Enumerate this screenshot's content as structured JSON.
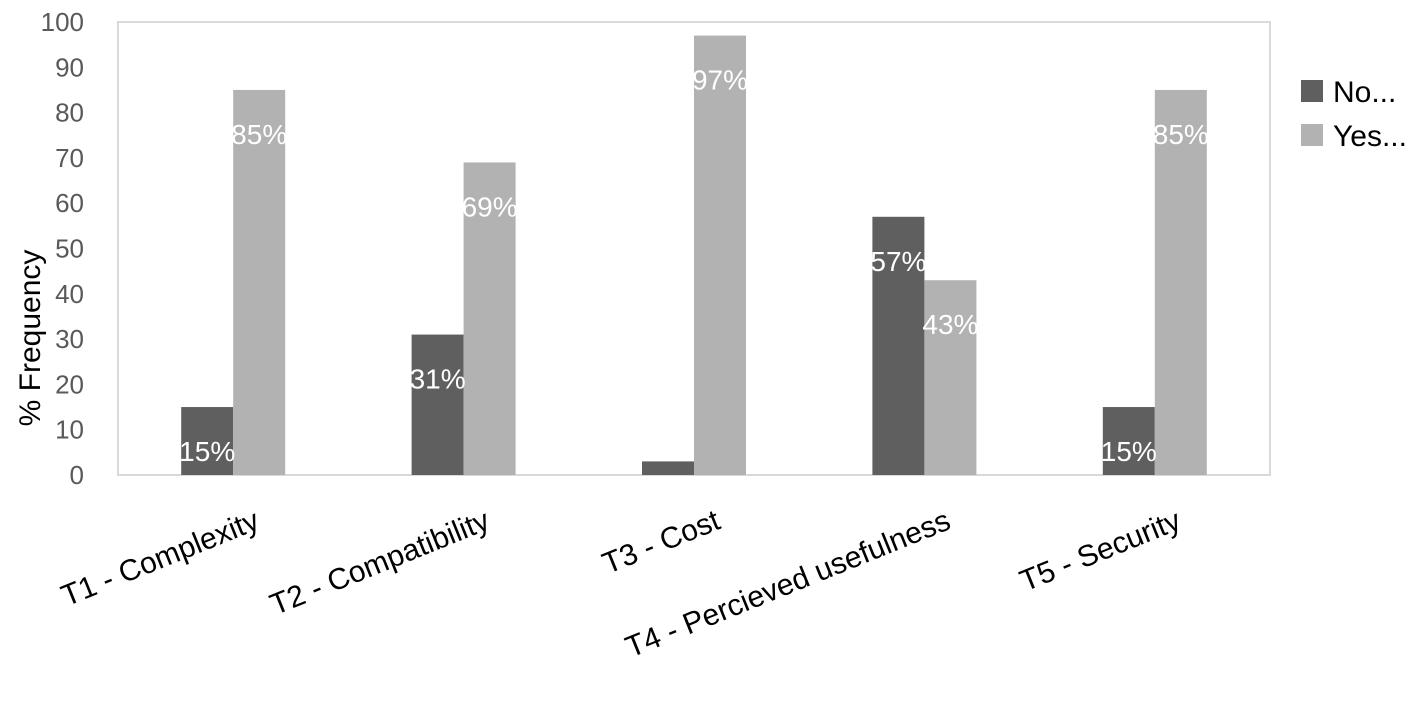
{
  "chart_data": {
    "type": "bar",
    "categories": [
      "T1 - Complexity",
      "T2 - Compatibility",
      "T3 - Cost",
      "T4 - Percieved usefulness",
      "T5 -  Security"
    ],
    "series": [
      {
        "name": "No...",
        "values": [
          15,
          31,
          3,
          57,
          15
        ],
        "labels": [
          "15%",
          "31%",
          "",
          "57%",
          "15%"
        ],
        "color": "#5f5f5f"
      },
      {
        "name": "Yes...",
        "values": [
          85,
          69,
          97,
          43,
          85
        ],
        "labels": [
          "85%",
          "69%",
          "97%",
          "43%",
          "85%"
        ],
        "color": "#b2b2b2"
      }
    ],
    "ylabel": "% Frequency",
    "ylim": [
      0,
      100
    ],
    "yticks": [
      "0",
      "10",
      "20",
      "30",
      "40",
      "50",
      "60",
      "70",
      "80",
      "90",
      "100"
    ],
    "grid": false,
    "legend": "right",
    "plot_border_color": "#d9d9d9"
  }
}
